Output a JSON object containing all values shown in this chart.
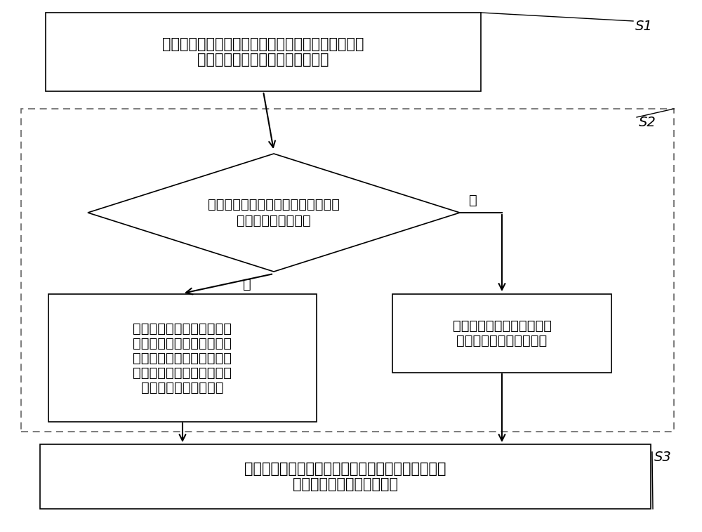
{
  "bg_color": "#ffffff",
  "border_color": "#000000",
  "dashed_border_color": "#666666",
  "text_color": "#000000",
  "arrow_color": "#000000",
  "s1_label": "S1",
  "s2_label": "S2",
  "s3_label": "S3",
  "box1_line1": "行人过街信号绿灯亮时，预测车辆排满该行人过街通",
  "box1_line2": "道至上游交叉路口路段的等待时间",
  "diamond_line1": "判断等待时间是否大于行人通过行人",
  "diamond_line2": "过街通道所需的时间",
  "yes_label": "是",
  "no_label": "否",
  "box_no_lines": [
    "将行人过街信号绿灯倒计时",
    "的时长设置为等待时间，倒",
    "计时结束后行人过街信号灯",
    "切换为红灯，机动车通行方",
    "向的信号灯切换为绿灯"
  ],
  "box_yes_line1": "按照预设的行人过街绿灯延",
  "box_yes_line2": "迟时间控制信号灯的变化",
  "box3_line1": "机动车通行方向绿灯亮时，则按照预设的机动车绿灯",
  "box3_line2": "延迟时间控制信号灯的变化",
  "fontsize_main": 15,
  "fontsize_label": 14,
  "fontsize_sn": 14
}
